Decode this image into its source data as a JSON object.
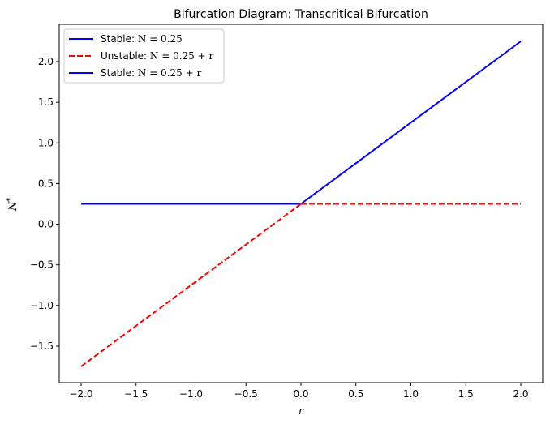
{
  "chart_data": {
    "type": "line",
    "title": "Bifurcation Diagram: Transcritical Bifurcation",
    "xlabel": "r",
    "ylabel": "N*",
    "xlim": [
      -2.0,
      2.0
    ],
    "ylim": [
      -1.75,
      2.25
    ],
    "xticks": [
      "−2.0",
      "−1.5",
      "−1.0",
      "−0.5",
      "0.0",
      "0.5",
      "1.0",
      "1.5",
      "2.0"
    ],
    "xtick_values": [
      -2.0,
      -1.5,
      -1.0,
      -0.5,
      0.0,
      0.5,
      1.0,
      1.5,
      2.0
    ],
    "yticks": [
      "−1.5",
      "−1.0",
      "−0.5",
      "0.0",
      "0.5",
      "1.0",
      "1.5",
      "2.0"
    ],
    "ytick_values": [
      -1.5,
      -1.0,
      -0.5,
      0.0,
      0.5,
      1.0,
      1.5,
      2.0
    ],
    "grid": false,
    "legend_position": "top-left",
    "series": [
      {
        "name": "Stable: N = 0.25",
        "legend_prefix": "Stable: ",
        "legend_math": "N = 0.25",
        "color": "#0000ff",
        "style": "solid",
        "x": [
          -2.0,
          0.0
        ],
        "y": [
          0.25,
          0.25
        ]
      },
      {
        "name": "Unstable: N = 0.25 + r",
        "legend_prefix": "Unstable: ",
        "legend_math": "N = 0.25 + r",
        "color": "#ff0000",
        "style": "dashed",
        "x": [
          -2.0,
          0.0
        ],
        "y": [
          -1.75,
          0.25
        ]
      },
      {
        "name": "Stable: N = 0.25 + r",
        "legend_prefix": "Stable: ",
        "legend_math": "N = 0.25 + r",
        "color": "#0000ff",
        "style": "solid",
        "x": [
          0.0,
          2.0
        ],
        "y": [
          0.25,
          2.25
        ]
      },
      {
        "name": "Unstable: N = 0.25",
        "color": "#ff0000",
        "style": "dashed",
        "in_legend": false,
        "x": [
          0.0,
          2.0
        ],
        "y": [
          0.25,
          0.25
        ]
      }
    ]
  }
}
